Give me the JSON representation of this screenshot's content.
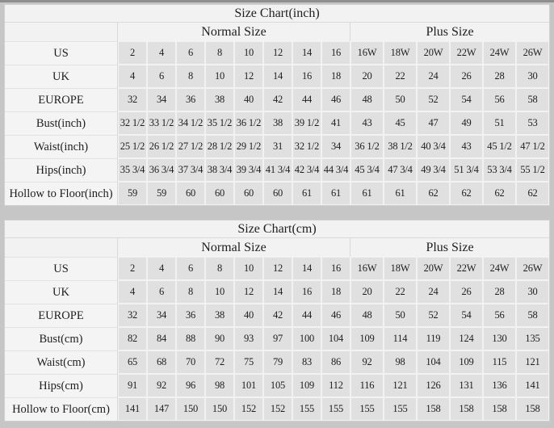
{
  "page": {
    "background_color": "#c6c6c6",
    "table_background_color": "#f2f2f2",
    "data_cell_color": "#e0e0e0",
    "text_color": "#1e1e1e"
  },
  "chart_data": [
    {
      "type": "table",
      "title": "Size Chart(inch)",
      "column_groups": [
        {
          "label": "",
          "span": 1
        },
        {
          "label": "Normal Size",
          "span": 8
        },
        {
          "label": "Plus Size",
          "span": 6
        }
      ],
      "rows": [
        {
          "label": "US",
          "values": [
            "2",
            "4",
            "6",
            "8",
            "10",
            "12",
            "14",
            "16",
            "16W",
            "18W",
            "20W",
            "22W",
            "24W",
            "26W"
          ]
        },
        {
          "label": "UK",
          "values": [
            "4",
            "6",
            "8",
            "10",
            "12",
            "14",
            "16",
            "18",
            "20",
            "22",
            "24",
            "26",
            "28",
            "30"
          ]
        },
        {
          "label": "EUROPE",
          "values": [
            "32",
            "34",
            "36",
            "38",
            "40",
            "42",
            "44",
            "46",
            "48",
            "50",
            "52",
            "54",
            "56",
            "58"
          ]
        },
        {
          "label": "Bust(inch)",
          "values": [
            "32 1/2",
            "33 1/2",
            "34 1/2",
            "35 1/2",
            "36 1/2",
            "38",
            "39 1/2",
            "41",
            "43",
            "45",
            "47",
            "49",
            "51",
            "53"
          ]
        },
        {
          "label": "Waist(inch)",
          "values": [
            "25 1/2",
            "26 1/2",
            "27 1/2",
            "28 1/2",
            "29 1/2",
            "31",
            "32 1/2",
            "34",
            "36 1/2",
            "38 1/2",
            "40 3/4",
            "43",
            "45 1/2",
            "47 1/2"
          ]
        },
        {
          "label": "Hips(inch)",
          "values": [
            "35 3/4",
            "36 3/4",
            "37 3/4",
            "38 3/4",
            "39 3/4",
            "41 3/4",
            "42 3/4",
            "44 3/4",
            "45 3/4",
            "47 3/4",
            "49 3/4",
            "51 3/4",
            "53 3/4",
            "55 1/2"
          ]
        },
        {
          "label": "Hollow to Floor(inch)",
          "values": [
            "59",
            "59",
            "60",
            "60",
            "60",
            "60",
            "61",
            "61",
            "61",
            "61",
            "62",
            "62",
            "62",
            "62"
          ]
        }
      ]
    },
    {
      "type": "table",
      "title": "Size Chart(cm)",
      "column_groups": [
        {
          "label": "",
          "span": 1
        },
        {
          "label": "Normal Size",
          "span": 8
        },
        {
          "label": "Plus Size",
          "span": 6
        }
      ],
      "rows": [
        {
          "label": "US",
          "values": [
            "2",
            "4",
            "6",
            "8",
            "10",
            "12",
            "14",
            "16",
            "16W",
            "18W",
            "20W",
            "22W",
            "24W",
            "26W"
          ]
        },
        {
          "label": "UK",
          "values": [
            "4",
            "6",
            "8",
            "10",
            "12",
            "14",
            "16",
            "18",
            "20",
            "22",
            "24",
            "26",
            "28",
            "30"
          ]
        },
        {
          "label": "EUROPE",
          "values": [
            "32",
            "34",
            "36",
            "38",
            "40",
            "42",
            "44",
            "46",
            "48",
            "50",
            "52",
            "54",
            "56",
            "58"
          ]
        },
        {
          "label": "Bust(cm)",
          "values": [
            "82",
            "84",
            "88",
            "90",
            "93",
            "97",
            "100",
            "104",
            "109",
            "114",
            "119",
            "124",
            "130",
            "135"
          ]
        },
        {
          "label": "Waist(cm)",
          "values": [
            "65",
            "68",
            "70",
            "72",
            "75",
            "79",
            "83",
            "86",
            "92",
            "98",
            "104",
            "109",
            "115",
            "121"
          ]
        },
        {
          "label": "Hips(cm)",
          "values": [
            "91",
            "92",
            "96",
            "98",
            "101",
            "105",
            "109",
            "112",
            "116",
            "121",
            "126",
            "131",
            "136",
            "141"
          ]
        },
        {
          "label": "Hollow to Floor(cm)",
          "values": [
            "141",
            "147",
            "150",
            "150",
            "152",
            "152",
            "155",
            "155",
            "155",
            "155",
            "158",
            "158",
            "158",
            "158"
          ]
        }
      ]
    }
  ]
}
